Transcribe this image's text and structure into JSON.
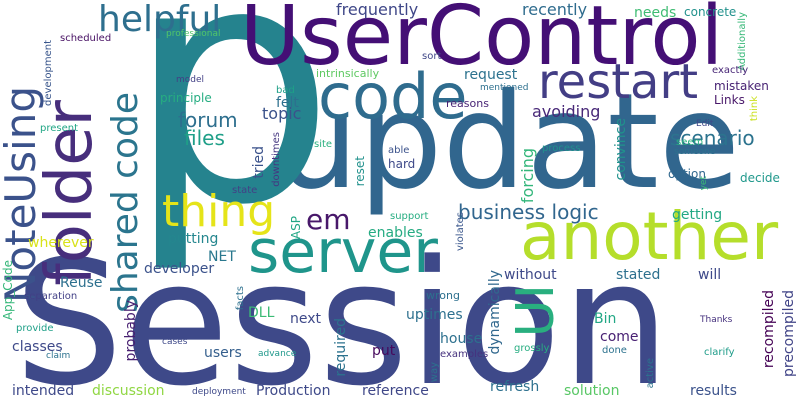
{
  "words": [
    {
      "text": "Session",
      "color": "#3e4989"
    },
    {
      "text": "update",
      "color": "#31668e"
    },
    {
      "text": "p",
      "color": "#25838e"
    },
    {
      "text": "UserControl",
      "color": "#440f75"
    },
    {
      "text": "another",
      "color": "#b5de2b"
    },
    {
      "text": "server",
      "color": "#1f958b"
    },
    {
      "text": "code",
      "color": "#2f6c8e"
    },
    {
      "text": "folder",
      "color": "#472e7c"
    },
    {
      "text": "restart",
      "color": "#433e85"
    },
    {
      "text": "helpful",
      "color": "#2e6f8e"
    },
    {
      "text": "UI",
      "color": "#29af7f"
    },
    {
      "text": "thing",
      "color": "#e5e419"
    },
    {
      "text": "NoteUsing",
      "color": "#3b528b"
    },
    {
      "text": "shared code",
      "color": "#2b758e"
    },
    {
      "text": "em",
      "color": "#48186a"
    },
    {
      "text": "business logic",
      "color": "#31668e"
    },
    {
      "text": "scenario",
      "color": "#2c738e"
    },
    {
      "text": "forum",
      "color": "#2e6f8e"
    },
    {
      "text": "files",
      "color": "#1f9f88"
    },
    {
      "text": "topic",
      "color": "#3b528b"
    },
    {
      "text": "felt",
      "color": "#2d708e"
    },
    {
      "text": "frequently",
      "color": "#3f4788"
    },
    {
      "text": "recently",
      "color": "#2f6c8e"
    },
    {
      "text": "needs",
      "color": "#3fbc73"
    },
    {
      "text": "concrete",
      "color": "#21918c"
    },
    {
      "text": "Additionally",
      "color": "#37b878"
    },
    {
      "text": "scheduled",
      "color": "#471063"
    },
    {
      "text": "professional",
      "color": "#52c569"
    },
    {
      "text": "development",
      "color": "#39568c"
    },
    {
      "text": "intrinsically",
      "color": "#5ec962"
    },
    {
      "text": "request",
      "color": "#2c728e"
    },
    {
      "text": "sort",
      "color": "#3f4788"
    },
    {
      "text": "model",
      "color": "#424086"
    },
    {
      "text": "principle",
      "color": "#26ad81"
    },
    {
      "text": "bad",
      "color": "#1fa088"
    },
    {
      "text": "mentioned",
      "color": "#2d708e"
    },
    {
      "text": "reasons",
      "color": "#482475"
    },
    {
      "text": "avoiding",
      "color": "#482878"
    },
    {
      "text": "exactly",
      "color": "#482677"
    },
    {
      "text": "mistaken",
      "color": "#482374"
    },
    {
      "text": "Links",
      "color": "#481769"
    },
    {
      "text": "think",
      "color": "#cae11f"
    },
    {
      "text": "Edit",
      "color": "#3e4989"
    },
    {
      "text": "seem",
      "color": "#2ab07f"
    },
    {
      "text": "someone",
      "color": "#2c728e"
    },
    {
      "text": "present",
      "color": "#21a685"
    },
    {
      "text": "able",
      "color": "#3b528b"
    },
    {
      "text": "hard",
      "color": "#3e4989"
    },
    {
      "text": "process",
      "color": "#21908d"
    },
    {
      "text": "convince",
      "color": "#20928c"
    },
    {
      "text": "forcing",
      "color": "#32b67a"
    },
    {
      "text": "tried",
      "color": "#3b528b"
    },
    {
      "text": "downtimes",
      "color": "#453781"
    },
    {
      "text": "site",
      "color": "#2ab07f"
    },
    {
      "text": "option",
      "color": "#31688e"
    },
    {
      "text": "yet",
      "color": "#3bbb75"
    },
    {
      "text": "decide",
      "color": "#1f988b"
    },
    {
      "text": "state",
      "color": "#424086"
    },
    {
      "text": "reset",
      "color": "#21918c"
    },
    {
      "text": "ASP",
      "color": "#22a785"
    },
    {
      "text": "NET",
      "color": "#2a788e"
    },
    {
      "text": "enables",
      "color": "#25ab82"
    },
    {
      "text": "getting",
      "color": "#22a884"
    },
    {
      "text": "wherever",
      "color": "#d8e219"
    },
    {
      "text": "putting",
      "color": "#24868e"
    },
    {
      "text": "developer",
      "color": "#3b528b"
    },
    {
      "text": "support",
      "color": "#26ad81"
    },
    {
      "text": "violates",
      "color": "#39568c"
    },
    {
      "text": "without",
      "color": "#3e4989"
    },
    {
      "text": "stated",
      "color": "#2d708e"
    },
    {
      "text": "will",
      "color": "#3e4989"
    },
    {
      "text": "App_Code",
      "color": "#35b779"
    },
    {
      "text": "Reuse",
      "color": "#2d708e"
    },
    {
      "text": "separation",
      "color": "#424086"
    },
    {
      "text": "facts",
      "color": "#2d708e"
    },
    {
      "text": "wrong",
      "color": "#2d708e"
    },
    {
      "text": "DLL",
      "color": "#3bbb75"
    },
    {
      "text": "provide",
      "color": "#1fa088"
    },
    {
      "text": "next",
      "color": "#3e4989"
    },
    {
      "text": "uptimes",
      "color": "#2d708e"
    },
    {
      "text": "Bin",
      "color": "#22a785"
    },
    {
      "text": "dynamically",
      "color": "#31688e"
    },
    {
      "text": "Thanks",
      "color": "#46327e"
    },
    {
      "text": "precompiled",
      "color": "#414487"
    },
    {
      "text": "claim",
      "color": "#2c728e"
    },
    {
      "text": "cases",
      "color": "#3e4989"
    },
    {
      "text": "advance",
      "color": "#1f988b"
    },
    {
      "text": "classes",
      "color": "#3e4989"
    },
    {
      "text": "users",
      "color": "#355f8d"
    },
    {
      "text": "required",
      "color": "#2c728e"
    },
    {
      "text": "put",
      "color": "#46085c"
    },
    {
      "text": "house",
      "color": "#2d708e"
    },
    {
      "text": "come",
      "color": "#482173"
    },
    {
      "text": "examples",
      "color": "#46327e"
    },
    {
      "text": "grossly",
      "color": "#27ad81"
    },
    {
      "text": "clarify",
      "color": "#1e9c89"
    },
    {
      "text": "way",
      "color": "#2c728e"
    },
    {
      "text": "done",
      "color": "#2c728e"
    },
    {
      "text": "recompiled",
      "color": "#440154"
    },
    {
      "text": "probably",
      "color": "#482071"
    },
    {
      "text": "intended",
      "color": "#3e4989"
    },
    {
      "text": "discussion",
      "color": "#90d743"
    },
    {
      "text": "Production",
      "color": "#3e4989"
    },
    {
      "text": "reference",
      "color": "#3f4788"
    },
    {
      "text": "refresh",
      "color": "#2d708e"
    },
    {
      "text": "solution",
      "color": "#58c765"
    },
    {
      "text": "results",
      "color": "#3b528b"
    },
    {
      "text": "deployment",
      "color": "#3e4989"
    },
    {
      "text": "active",
      "color": "#2c728e"
    }
  ]
}
